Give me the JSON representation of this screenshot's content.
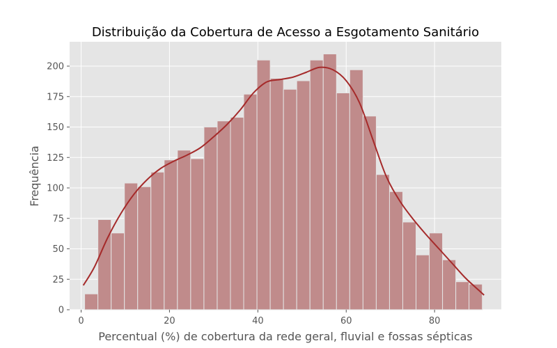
{
  "chart_data": {
    "type": "bar",
    "title": "Distribuição da Cobertura de Acesso a Esgotamento Sanitário",
    "xlabel": "Percentual (%) de cobertura da rede geral, fluvial e fossas sépticas",
    "ylabel": "Frequência",
    "xlim": [
      -2.6,
      95.1
    ],
    "ylim": [
      0,
      220
    ],
    "x_ticks": [
      0,
      20,
      40,
      60,
      80
    ],
    "y_ticks": [
      0,
      25,
      50,
      75,
      100,
      125,
      150,
      175,
      200
    ],
    "grid": true,
    "bins": [
      {
        "x0": 0.8,
        "x1": 3.8,
        "value": 13
      },
      {
        "x0": 3.8,
        "x1": 6.8,
        "value": 74
      },
      {
        "x0": 6.8,
        "x1": 9.8,
        "value": 63
      },
      {
        "x0": 9.8,
        "x1": 12.8,
        "value": 104
      },
      {
        "x0": 12.8,
        "x1": 15.8,
        "value": 101
      },
      {
        "x0": 15.8,
        "x1": 18.8,
        "value": 113
      },
      {
        "x0": 18.8,
        "x1": 21.8,
        "value": 123
      },
      {
        "x0": 21.8,
        "x1": 24.8,
        "value": 131
      },
      {
        "x0": 24.8,
        "x1": 27.8,
        "value": 124
      },
      {
        "x0": 27.8,
        "x1": 30.8,
        "value": 150
      },
      {
        "x0": 30.8,
        "x1": 33.8,
        "value": 155
      },
      {
        "x0": 33.8,
        "x1": 36.8,
        "value": 158
      },
      {
        "x0": 36.8,
        "x1": 39.8,
        "value": 177
      },
      {
        "x0": 39.8,
        "x1": 42.8,
        "value": 205
      },
      {
        "x0": 42.8,
        "x1": 45.8,
        "value": 190
      },
      {
        "x0": 45.8,
        "x1": 48.8,
        "value": 181
      },
      {
        "x0": 48.8,
        "x1": 51.8,
        "value": 188
      },
      {
        "x0": 51.8,
        "x1": 54.8,
        "value": 205
      },
      {
        "x0": 54.8,
        "x1": 57.8,
        "value": 210
      },
      {
        "x0": 57.8,
        "x1": 60.8,
        "value": 178
      },
      {
        "x0": 60.8,
        "x1": 63.8,
        "value": 197
      },
      {
        "x0": 63.8,
        "x1": 66.8,
        "value": 159
      },
      {
        "x0": 66.8,
        "x1": 69.8,
        "value": 111
      },
      {
        "x0": 69.8,
        "x1": 72.8,
        "value": 97
      },
      {
        "x0": 72.8,
        "x1": 75.8,
        "value": 72
      },
      {
        "x0": 75.8,
        "x1": 78.8,
        "value": 45
      },
      {
        "x0": 78.8,
        "x1": 81.8,
        "value": 63
      },
      {
        "x0": 81.8,
        "x1": 84.8,
        "value": 41
      },
      {
        "x0": 84.8,
        "x1": 87.8,
        "value": 23
      },
      {
        "x0": 87.8,
        "x1": 90.8,
        "value": 21
      }
    ],
    "kde_curve": {
      "x": [
        0.5,
        3,
        6,
        9,
        12,
        15,
        18,
        21,
        24,
        27,
        30,
        33,
        36,
        39,
        42,
        45,
        48,
        51,
        54,
        57,
        60,
        63,
        66,
        69,
        72,
        75,
        78,
        81,
        84,
        87,
        90,
        91.2
      ],
      "y": [
        20,
        35,
        59,
        79,
        95,
        107,
        116,
        122,
        127,
        133,
        142,
        152,
        164,
        178,
        187,
        189,
        191,
        195,
        199,
        197,
        188,
        170,
        140,
        110,
        90,
        75,
        62,
        50,
        38,
        26,
        16,
        12
      ]
    },
    "colors": {
      "bar_fill": "#c08b8b",
      "bar_stroke": "#e4e4e4",
      "kde_line": "#a52a2a",
      "plot_background": "#e5e5e5",
      "grid": "#ffffff",
      "tick_text": "#555555",
      "label_text": "#555555",
      "title_text": "#000000"
    }
  }
}
